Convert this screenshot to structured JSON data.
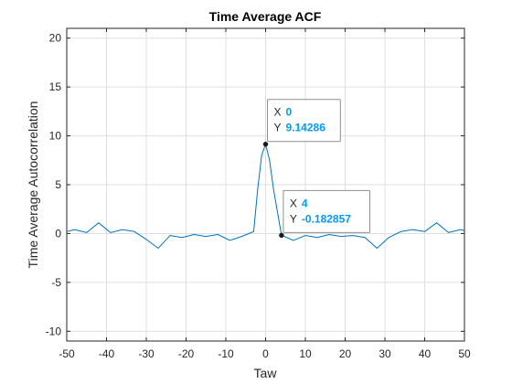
{
  "chart_data": {
    "type": "line",
    "title": "Time Average ACF",
    "xlabel": "Taw",
    "ylabel": "Time Average Autocorrelation",
    "xlim": [
      -50,
      50
    ],
    "ylim": [
      -11,
      21
    ],
    "grid": true,
    "xticks": [
      -50,
      -40,
      -30,
      -20,
      -10,
      0,
      10,
      20,
      30,
      40,
      50
    ],
    "yticks": [
      -10,
      -5,
      0,
      5,
      10,
      15,
      20
    ],
    "series": [
      {
        "color": "#0072BD",
        "x": [
          -50,
          -48,
          -45,
          -42,
          -39,
          -36,
          -33,
          -30,
          -27,
          -24,
          -21,
          -18,
          -15,
          -12,
          -9,
          -6,
          -3,
          -2,
          -1,
          0,
          1,
          2,
          4,
          7,
          10,
          13,
          16,
          19,
          22,
          25,
          28,
          31,
          34,
          37,
          40,
          43,
          46,
          49,
          50
        ],
        "y": [
          0.2,
          0.4,
          0.1,
          1.1,
          0.1,
          0.4,
          0.2,
          -0.6,
          -1.5,
          -0.2,
          -0.4,
          -0.1,
          -0.3,
          -0.1,
          -0.7,
          -0.3,
          0.2,
          4.5,
          8.0,
          9.14286,
          7.5,
          4.5,
          -0.182857,
          -0.7,
          -0.2,
          -0.4,
          -0.1,
          -0.3,
          -0.2,
          -0.4,
          -1.5,
          -0.4,
          0.2,
          0.4,
          0.2,
          1.1,
          0.1,
          0.4,
          0.3
        ]
      }
    ],
    "datatips": [
      {
        "x_label": "X",
        "x_value": "0",
        "y_label": "Y",
        "y_value": "9.14286",
        "point": [
          0,
          9.14286
        ]
      },
      {
        "x_label": "X",
        "x_value": "4",
        "y_label": "Y",
        "y_value": "-0.182857",
        "point": [
          4,
          -0.182857
        ]
      }
    ],
    "colors": {
      "line": "#0072BD",
      "tip_value": "#0099FF",
      "grid": "#DFDFDF",
      "axis": "#262626"
    }
  }
}
